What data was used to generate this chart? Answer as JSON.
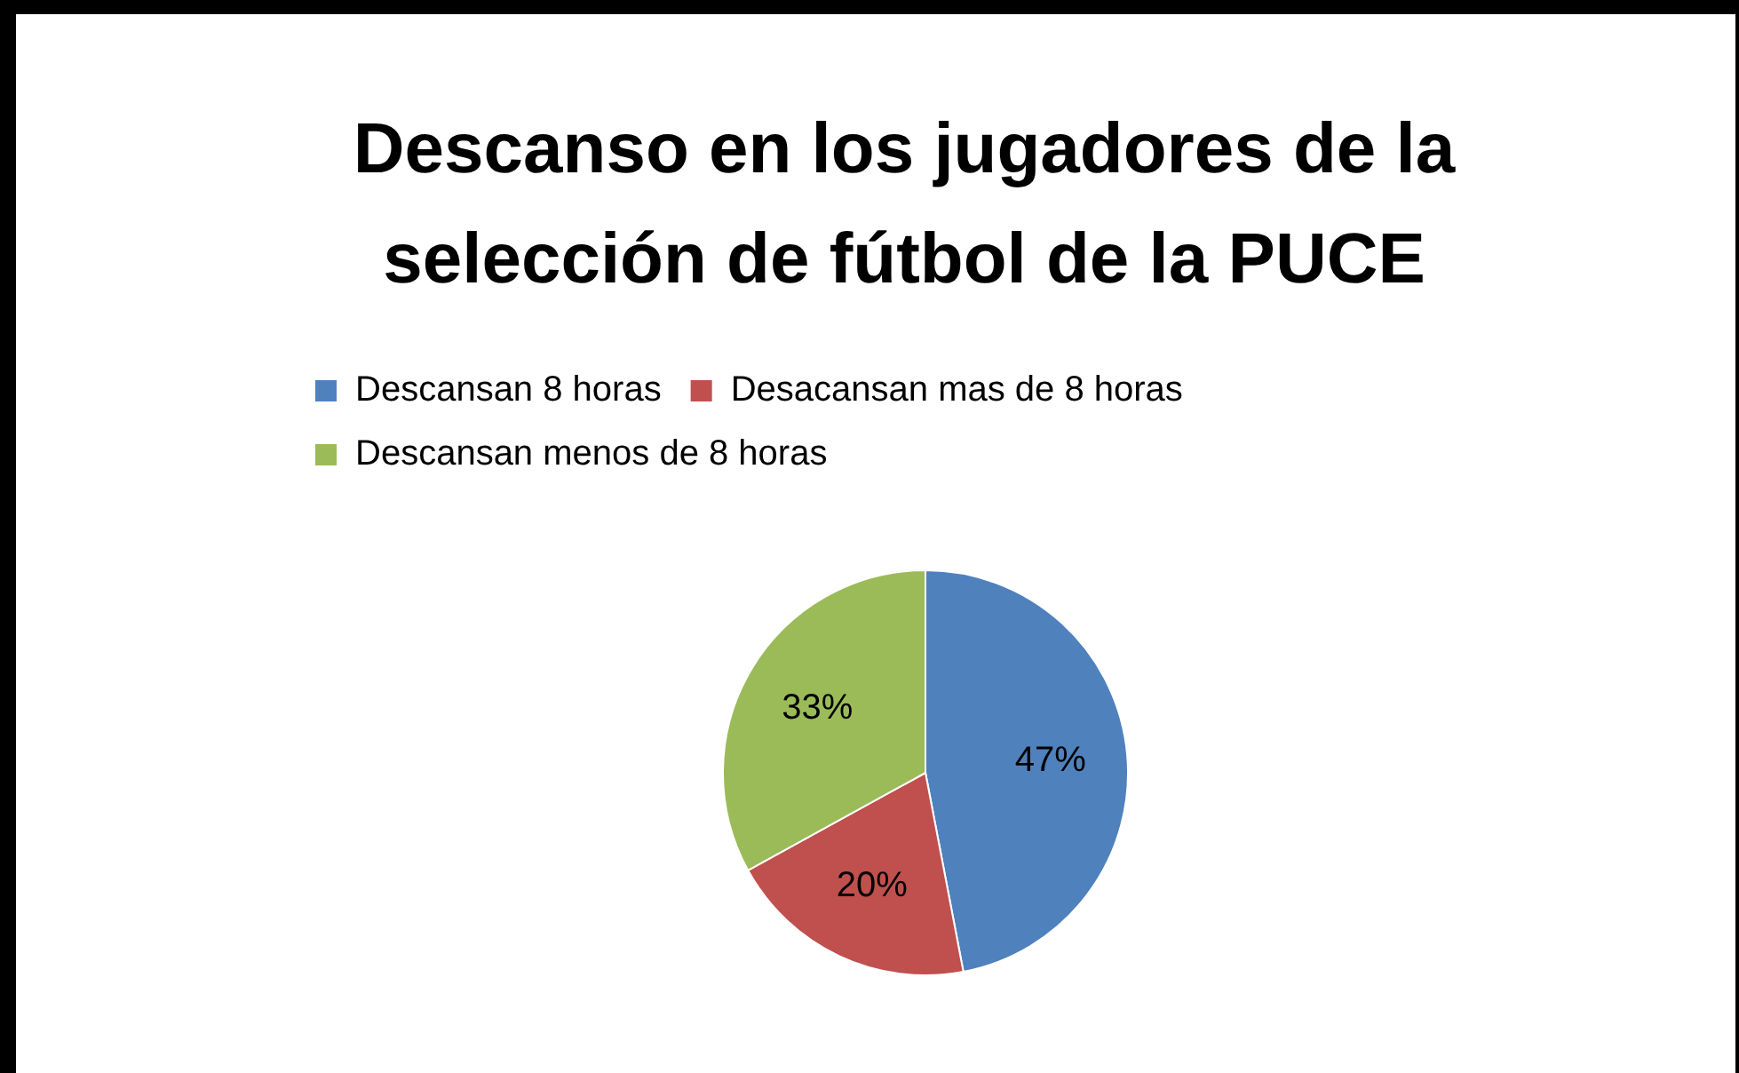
{
  "chart_data": {
    "type": "pie",
    "title": "Descanso en los jugadores de la selección de fútbol de la PUCE",
    "categories": [
      "Descansan 8 horas",
      "Desacansan mas de 8 horas",
      "Descansan menos de 8 horas"
    ],
    "values": [
      47,
      20,
      33
    ],
    "colors": [
      "#4f81bd",
      "#c0504d",
      "#9bbb59"
    ],
    "value_labels": [
      "47%",
      "20%",
      "33%"
    ],
    "legend": "top"
  }
}
